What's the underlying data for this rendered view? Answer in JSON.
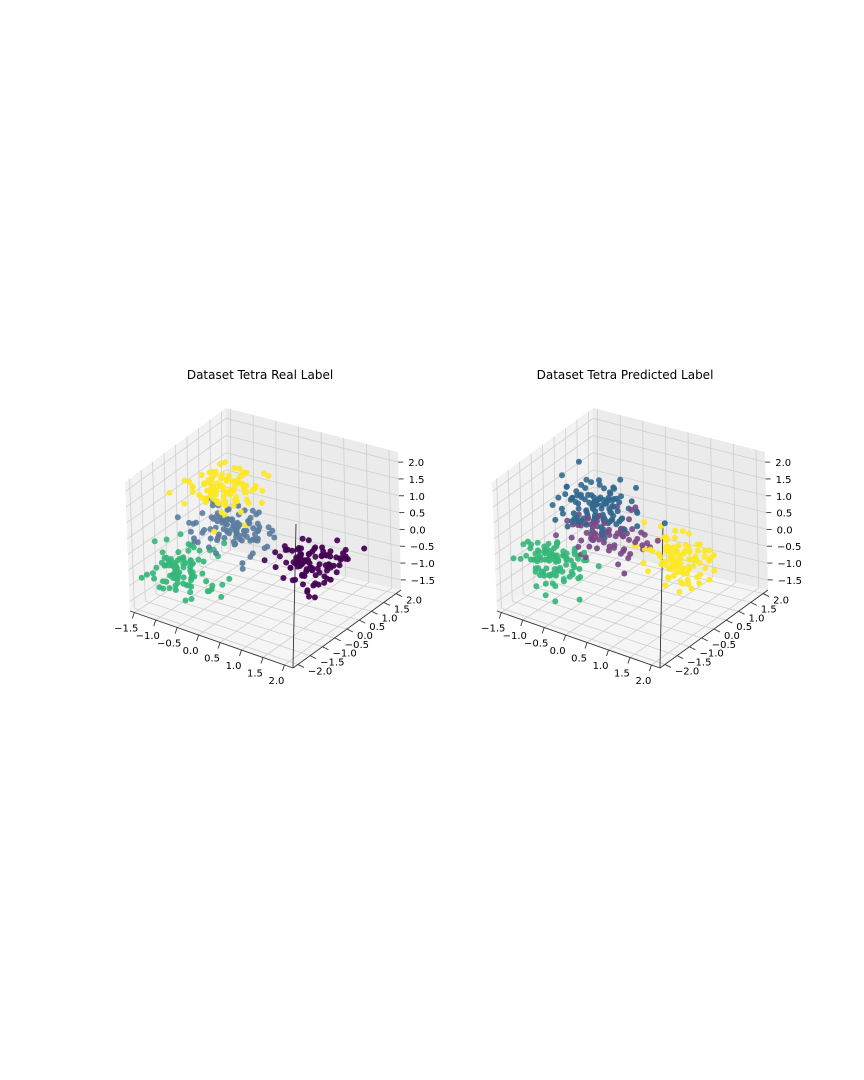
{
  "chart_data": [
    {
      "type": "scatter",
      "projection": "3d",
      "title": "Dataset Tetra Real Label",
      "x_ticks": [
        "−1.5",
        "−1.0",
        "−0.5",
        "0.0",
        "0.5",
        "1.0",
        "1.5",
        "2.0"
      ],
      "y_ticks": [
        "−2.0",
        "−1.5",
        "−1.0",
        "−0.5",
        "0.0",
        "0.5",
        "1.0",
        "1.5",
        "2.0"
      ],
      "z_ticks": [
        "−1.5",
        "−1.0",
        "−0.5",
        "0.0",
        "0.5",
        "1.0",
        "1.5",
        "2.0"
      ],
      "xlim": [
        -1.6,
        2.2
      ],
      "ylim": [
        -2.2,
        2.2
      ],
      "zlim": [
        -1.8,
        2.3
      ],
      "grid": true,
      "series": [
        {
          "color": "#fde725",
          "center": [
            -0.4,
            -0.1,
            1.4
          ],
          "count": 100
        },
        {
          "color": "#5c7da0",
          "center": [
            -0.3,
            -0.2,
            0.3
          ],
          "count": 100
        },
        {
          "color": "#35b779",
          "center": [
            -1.0,
            -0.9,
            -0.8
          ],
          "count": 100
        },
        {
          "color": "#440154",
          "center": [
            1.1,
            0.6,
            -0.6
          ],
          "count": 100
        }
      ]
    },
    {
      "type": "scatter",
      "projection": "3d",
      "title": "Dataset Tetra Predicted Label",
      "x_ticks": [
        "−1.5",
        "−1.0",
        "−0.5",
        "0.0",
        "0.5",
        "1.0",
        "1.5",
        "2.0"
      ],
      "y_ticks": [
        "−2.0",
        "−1.5",
        "−1.0",
        "−0.5",
        "0.0",
        "0.5",
        "1.0",
        "1.5",
        "2.0"
      ],
      "z_ticks": [
        "−1.5",
        "−1.0",
        "−0.5",
        "0.0",
        "0.5",
        "1.0",
        "1.5",
        "2.0"
      ],
      "xlim": [
        -1.6,
        2.2
      ],
      "ylim": [
        -2.2,
        2.2
      ],
      "zlim": [
        -1.8,
        2.3
      ],
      "grid": true,
      "series": [
        {
          "color": "#35b779",
          "center": [
            -1.0,
            -0.9,
            -0.6
          ],
          "count": 100
        },
        {
          "color": "#31688e",
          "center": [
            -0.4,
            0.0,
            0.9
          ],
          "count": 110
        },
        {
          "color": "#7a4a88",
          "center": [
            -0.1,
            -0.1,
            0.2
          ],
          "count": 80
        },
        {
          "color": "#fde725",
          "center": [
            1.1,
            0.5,
            -0.4
          ],
          "count": 100
        }
      ]
    }
  ]
}
